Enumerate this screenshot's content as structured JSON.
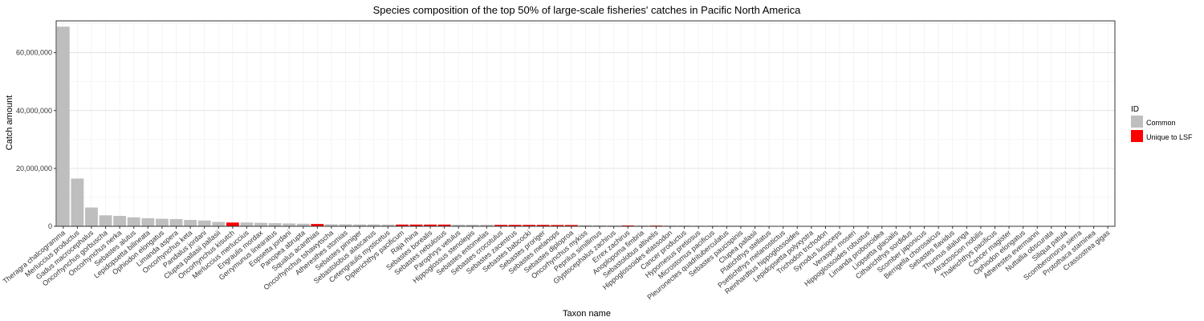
{
  "chart_data": {
    "type": "bar",
    "title": "Species composition of the top 50% of large-scale fisheries' catches in Pacific North America",
    "xlabel": "Taxon name",
    "ylabel": "Catch amount",
    "ylim": [
      0,
      71000000
    ],
    "yticks": [
      0,
      20000000,
      40000000,
      60000000
    ],
    "ytick_labels": [
      "0",
      "20,000,000",
      "40,000,000",
      "60,000,000"
    ],
    "grid": true,
    "legend": {
      "title": "ID",
      "position": "right",
      "entries": [
        {
          "label": "Common",
          "color": "#bebebe"
        },
        {
          "label": "Unique to LSF",
          "color": "#ff0000"
        }
      ]
    },
    "categories": [
      "Theragra chalcogramma",
      "Merluccius productus",
      "Gadus macrocephalus",
      "Oncorhynchus gorbuscha",
      "Oncorhynchus nerka",
      "Sebastes alutus",
      "Lepidopsetta bilineata",
      "Ophiodon elongatus",
      "Limanda aspera",
      "Oncorhynchus keta",
      "Pandalus jordani",
      "Clupea pallasii pallasii",
      "Oncorhynchus kisutch",
      "Merluccius merluccius",
      "Engraulis mordax",
      "Gerrymunus linearatus",
      "Eopsetta jordani",
      "Panopea abrupta",
      "Squalus acanthias",
      "Oncorhynchus tshawytscha",
      "Atheresthes stomias",
      "Sebastes pinniger",
      "Sebastolobus alascanus",
      "Cetengraulis mysticetus",
      "Dipterichthys pacificum",
      "Raja rhina",
      "Sebastes borealis",
      "Sebastes nebulosus",
      "Parophrys vetulus",
      "Hippoglossus stenolepis",
      "Sebastes entomelas",
      "Sebastes crocotulus",
      "Sebastes zacentrus",
      "Sebastes babcocki",
      "Sebastes proriger",
      "Sebastes melanops",
      "Sebastes diploproa",
      "Oncorhynchus mykiss",
      "Peprilus simillimus",
      "Glyptocephalus zachirus",
      "Errex zachirus",
      "Anoplopoma fimbria",
      "Sebastolobus altivelis",
      "Hippoglossoides elassodon",
      "Cancer productus",
      "Hypomesus pretiosus",
      "Microstomus pacificus",
      "Pleuronectes quadrituberculatus",
      "Sebastes paucispinis",
      "Clupea pallasii",
      "Platichthys stellatus",
      "Psettichthys melanostictus",
      "Reinhardtius hippoglossoides",
      "Lepidopsetta polyxystra",
      "Trichodon trichodon",
      "Synodus lucioceps",
      "Verasper moseri",
      "Hippoglossoides robustus",
      "Limanda proboscidea",
      "Liopsetta glacialis",
      "Citharichthys sordidus",
      "Scomber japonicus",
      "Berrigella chorosaicus",
      "Sebastes flavidus",
      "Thunnus alalunga",
      "Atractoscion nobilis",
      "Thaleichthys pacificus",
      "Cancer magister",
      "Ophiodon elongatus",
      "Atherestes evermanni",
      "Nuttallia obscurata",
      "Siliqua patula",
      "Scomberomorus sierra",
      "Protothaca staminea",
      "Crassostrea gigas"
    ],
    "values": [
      69000000,
      16500000,
      6500000,
      3800000,
      3600000,
      3100000,
      2800000,
      2600000,
      2500000,
      2200000,
      2000000,
      1500000,
      1300000,
      1300000,
      1200000,
      1100000,
      1000000,
      900000,
      800000,
      700000,
      700000,
      650000,
      650000,
      600000,
      600000,
      600000,
      600000,
      600000,
      550000,
      550000,
      550000,
      500000,
      500000,
      500000,
      500000,
      450000,
      450000,
      400000,
      350000,
      300000,
      300000,
      300000,
      250000,
      250000,
      250000,
      200000,
      200000,
      200000,
      200000,
      150000,
      0,
      0,
      0,
      0,
      0,
      0,
      0,
      0,
      0,
      0,
      0,
      0,
      0,
      0,
      0,
      0,
      0,
      0,
      0,
      0,
      0,
      0,
      0,
      0,
      0
    ],
    "ids": [
      "Common",
      "Common",
      "Common",
      "Common",
      "Common",
      "Common",
      "Common",
      "Common",
      "Common",
      "Common",
      "Common",
      "Common",
      "Unique to LSF",
      "Common",
      "Common",
      "Common",
      "Common",
      "Common",
      "Unique to LSF",
      "Common",
      "Common",
      "Common",
      "Common",
      "Common",
      "Unique to LSF",
      "Unique to LSF",
      "Unique to LSF",
      "Unique to LSF",
      "Common",
      "Common",
      "Common",
      "Unique to LSF",
      "Unique to LSF",
      "Unique to LSF",
      "Unique to LSF",
      "Unique to LSF",
      "Unique to LSF",
      "Common",
      "Common",
      "Common",
      "Unique to LSF",
      "Common",
      "Unique to LSF",
      "Common",
      "Common",
      "Common",
      "Common",
      "Common",
      "Common",
      "Unique to LSF",
      "Common",
      "Common",
      "Common",
      "Common",
      "Common",
      "Common",
      "Common",
      "Common",
      "Common",
      "Common",
      "Common",
      "Common",
      "Common",
      "Common",
      "Common",
      "Common",
      "Common",
      "Common",
      "Common",
      "Common",
      "Common",
      "Common",
      "Common",
      "Common",
      "Common"
    ]
  }
}
